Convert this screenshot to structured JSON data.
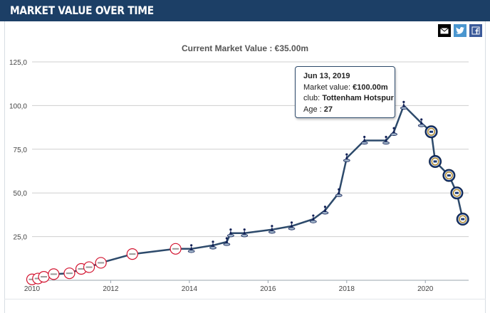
{
  "header": {
    "title": "MARKET VALUE OVER TIME"
  },
  "share": {
    "mail_icon": "mail-icon",
    "twitter_icon": "twitter-icon",
    "facebook_icon": "facebook-icon"
  },
  "colors": {
    "header_bg": "#1c3f66",
    "line": "#2d4a6b",
    "grid": "#cfcfcf",
    "club_tottenham": "#132257",
    "club_ajax": "#d2122e",
    "club_inter": "#1a3a78"
  },
  "chart_data": {
    "type": "line",
    "title": "Current Market Value : €35.00m",
    "xlabel": "",
    "ylabel": "",
    "xlim": [
      2010,
      2021.1
    ],
    "ylim": [
      0,
      125
    ],
    "x_ticks": [
      "2010",
      "2012",
      "2014",
      "2016",
      "2018",
      "2020"
    ],
    "x_tick_values": [
      2010,
      2012,
      2014,
      2016,
      2018,
      2020
    ],
    "y_ticks": [
      "25,0",
      "50,0",
      "75,0",
      "100,0",
      "125,0"
    ],
    "y_tick_values": [
      25,
      50,
      75,
      100,
      125
    ],
    "grid": true,
    "series": [
      {
        "name": "Market value",
        "points": [
          {
            "x": 2010.0,
            "y": 0.5,
            "club": "Ajax"
          },
          {
            "x": 2010.15,
            "y": 1.0,
            "club": "Ajax"
          },
          {
            "x": 2010.3,
            "y": 2.0,
            "club": "Ajax"
          },
          {
            "x": 2010.55,
            "y": 3.5,
            "club": "Ajax"
          },
          {
            "x": 2010.95,
            "y": 4.0,
            "club": "Ajax"
          },
          {
            "x": 2011.25,
            "y": 6.5,
            "club": "Ajax"
          },
          {
            "x": 2011.45,
            "y": 7.5,
            "club": "Ajax"
          },
          {
            "x": 2011.75,
            "y": 10.0,
            "club": "Ajax"
          },
          {
            "x": 2012.55,
            "y": 15.0,
            "club": "Ajax"
          },
          {
            "x": 2013.65,
            "y": 18.0,
            "club": "Ajax"
          },
          {
            "x": 2014.05,
            "y": 18.0,
            "club": "Tottenham Hotspur"
          },
          {
            "x": 2014.6,
            "y": 20.0,
            "club": "Tottenham Hotspur"
          },
          {
            "x": 2014.95,
            "y": 22.0,
            "club": "Tottenham Hotspur"
          },
          {
            "x": 2015.05,
            "y": 27.0,
            "club": "Tottenham Hotspur"
          },
          {
            "x": 2015.4,
            "y": 27.0,
            "club": "Tottenham Hotspur"
          },
          {
            "x": 2016.1,
            "y": 29.0,
            "club": "Tottenham Hotspur"
          },
          {
            "x": 2016.6,
            "y": 31.0,
            "club": "Tottenham Hotspur"
          },
          {
            "x": 2017.15,
            "y": 35.0,
            "club": "Tottenham Hotspur"
          },
          {
            "x": 2017.45,
            "y": 40.0,
            "club": "Tottenham Hotspur"
          },
          {
            "x": 2017.8,
            "y": 50.0,
            "club": "Tottenham Hotspur"
          },
          {
            "x": 2018.0,
            "y": 70.0,
            "club": "Tottenham Hotspur"
          },
          {
            "x": 2018.45,
            "y": 80.0,
            "club": "Tottenham Hotspur"
          },
          {
            "x": 2019.0,
            "y": 80.0,
            "club": "Tottenham Hotspur"
          },
          {
            "x": 2019.2,
            "y": 85.0,
            "club": "Tottenham Hotspur"
          },
          {
            "x": 2019.45,
            "y": 100.0,
            "club": "Tottenham Hotspur"
          },
          {
            "x": 2019.9,
            "y": 90.0,
            "club": "Tottenham Hotspur"
          },
          {
            "x": 2020.15,
            "y": 85.0,
            "club": "Inter"
          },
          {
            "x": 2020.25,
            "y": 68.0,
            "club": "Inter"
          },
          {
            "x": 2020.6,
            "y": 60.0,
            "club": "Inter"
          },
          {
            "x": 2020.8,
            "y": 50.0,
            "club": "Inter"
          },
          {
            "x": 2020.95,
            "y": 35.0,
            "club": "Inter"
          }
        ]
      }
    ],
    "tooltip": {
      "date": "Jun 13, 2019",
      "value_label": "Market value:",
      "value": "€100.00m",
      "club_label": "club:",
      "club": "Tottenham Hotspur",
      "age_label": "Age :",
      "age": "27"
    }
  }
}
